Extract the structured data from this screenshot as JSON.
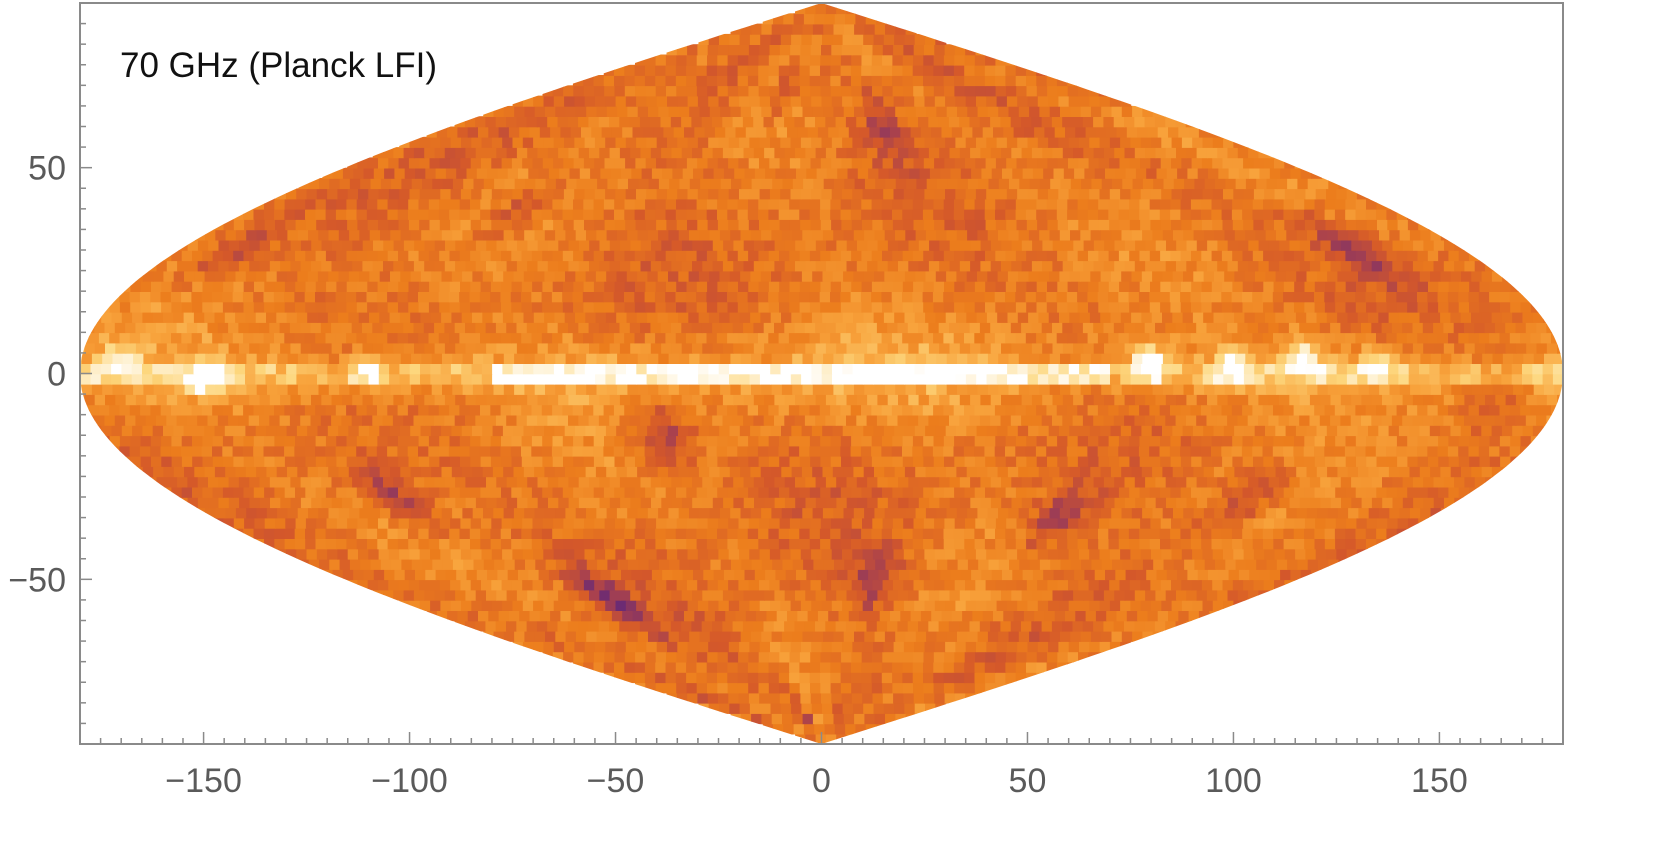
{
  "chart_data": {
    "type": "heatmap",
    "projection": "sinusoidal",
    "title": "70 GHz (Planck LFI)",
    "xlim": [
      -180,
      180
    ],
    "ylim": [
      -90,
      90
    ],
    "x_ticks": [
      -150,
      -100,
      -50,
      0,
      50,
      100,
      150
    ],
    "x_tick_labels": [
      "−150",
      "−100",
      "−50",
      "0",
      "50",
      "100",
      "150"
    ],
    "y_ticks": [
      50,
      0,
      -50
    ],
    "y_tick_labels": [
      "50",
      "0",
      "−50"
    ],
    "grid": false,
    "colormap": [
      "#2e1452",
      "#6a2a74",
      "#a8414e",
      "#d4582a",
      "#ec7d1c",
      "#f8a33c",
      "#fdd77e",
      "#ffffff"
    ],
    "background_level": 0.55,
    "galactic_plane": {
      "latitude": 0,
      "from_longitude": -80,
      "to_longitude": 70,
      "peak_level": 1.0
    },
    "bright_sources": [
      {
        "lon": 80,
        "lat": 3,
        "level": 1.0
      },
      {
        "lon": 118,
        "lat": 5,
        "level": 0.9
      },
      {
        "lon": 100,
        "lat": 2,
        "level": 0.85
      },
      {
        "lon": 135,
        "lat": 2,
        "level": 0.85
      },
      {
        "lon": -110,
        "lat": 0,
        "level": 0.8
      },
      {
        "lon": -150,
        "lat": -2,
        "level": 0.82
      },
      {
        "lon": -170,
        "lat": 4,
        "level": 0.8
      }
    ],
    "cold_spots": [
      {
        "lon": -40,
        "lat": -15,
        "level": 0.15
      },
      {
        "lon": -88,
        "lat": -55,
        "level": 0.12
      },
      {
        "lon": -35,
        "lat": -85,
        "level": 0.1
      },
      {
        "lon": -120,
        "lat": -30,
        "level": 0.2
      },
      {
        "lon": 70,
        "lat": -35,
        "level": 0.22
      },
      {
        "lon": 150,
        "lat": 30,
        "level": 0.25
      },
      {
        "lon": -95,
        "lat": 40,
        "level": 0.28
      },
      {
        "lon": 20,
        "lat": -50,
        "level": 0.22
      },
      {
        "lon": -165,
        "lat": 30,
        "level": 0.3
      },
      {
        "lon": 120,
        "lat": -30,
        "level": 0.25
      },
      {
        "lon": -25,
        "lat": 70,
        "level": 0.3
      },
      {
        "lon": 30,
        "lat": 60,
        "level": 0.32
      },
      {
        "lon": 165,
        "lat": -5,
        "level": 0.35
      }
    ]
  }
}
